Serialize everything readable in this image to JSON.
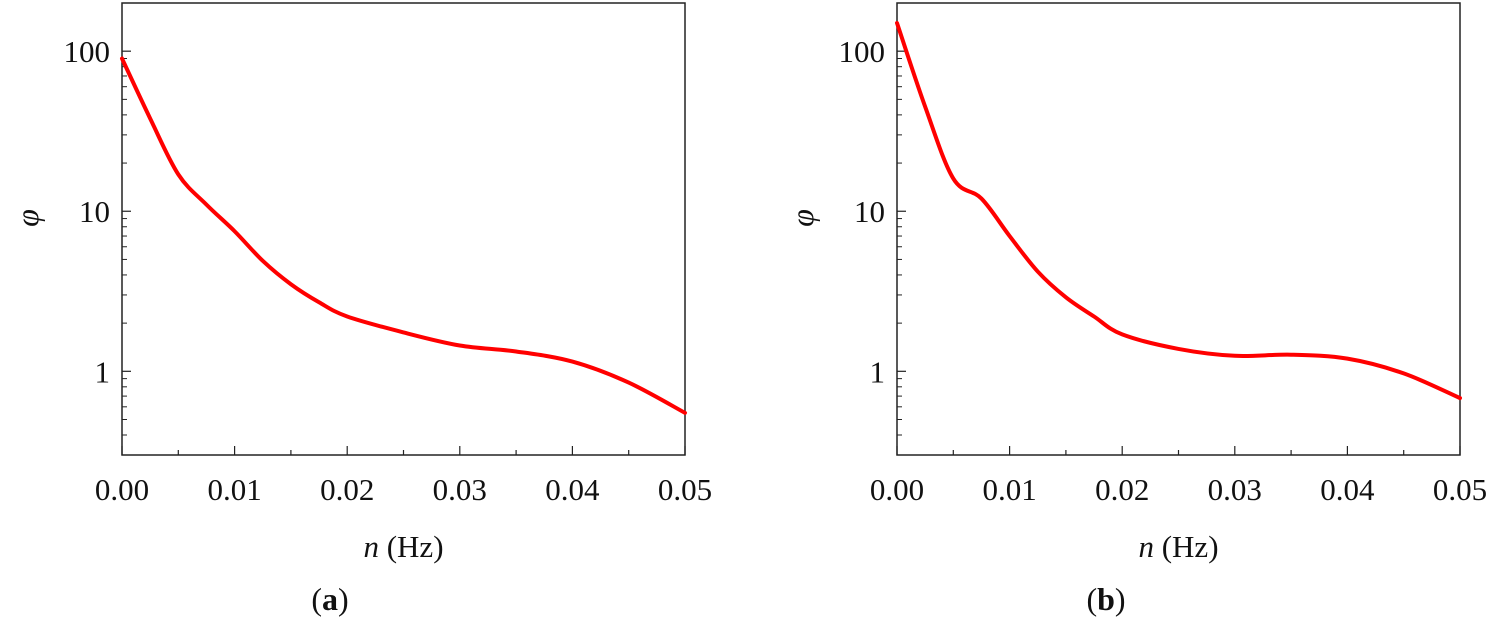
{
  "chart_data": [
    {
      "type": "line",
      "panel_label": "a",
      "xlabel_var": "n",
      "xlabel_unit": " (Hz)",
      "ylabel": "φ",
      "xlim": [
        0,
        0.05
      ],
      "ylim": [
        0.3,
        200
      ],
      "yscale": "log",
      "grid": false,
      "xticks": [
        "0.00",
        "0.01",
        "0.02",
        "0.03",
        "0.04",
        "0.05"
      ],
      "yticks": [
        "1",
        "10",
        "100"
      ],
      "line_color": "#ff0000",
      "x": [
        0,
        0.0025,
        0.005,
        0.0075,
        0.01,
        0.0125,
        0.015,
        0.0175,
        0.02,
        0.025,
        0.03,
        0.035,
        0.04,
        0.045,
        0.05
      ],
      "y": [
        90,
        38,
        17,
        11,
        7.5,
        4.9,
        3.5,
        2.7,
        2.2,
        1.75,
        1.45,
        1.33,
        1.15,
        0.85,
        0.55
      ]
    },
    {
      "type": "line",
      "panel_label": "b",
      "xlabel_var": "n",
      "xlabel_unit": " (Hz)",
      "ylabel": "φ",
      "xlim": [
        0,
        0.05
      ],
      "ylim": [
        0.3,
        200
      ],
      "yscale": "log",
      "grid": false,
      "xticks": [
        "0.00",
        "0.01",
        "0.02",
        "0.03",
        "0.04",
        "0.05"
      ],
      "yticks": [
        "1",
        "10",
        "100"
      ],
      "line_color": "#ff0000",
      "x": [
        0,
        0.0025,
        0.005,
        0.0075,
        0.01,
        0.0125,
        0.015,
        0.0175,
        0.02,
        0.025,
        0.03,
        0.035,
        0.04,
        0.045,
        0.05
      ],
      "y": [
        150,
        45,
        16,
        12,
        7.0,
        4.2,
        2.9,
        2.2,
        1.7,
        1.38,
        1.25,
        1.27,
        1.2,
        0.97,
        0.68
      ]
    }
  ]
}
